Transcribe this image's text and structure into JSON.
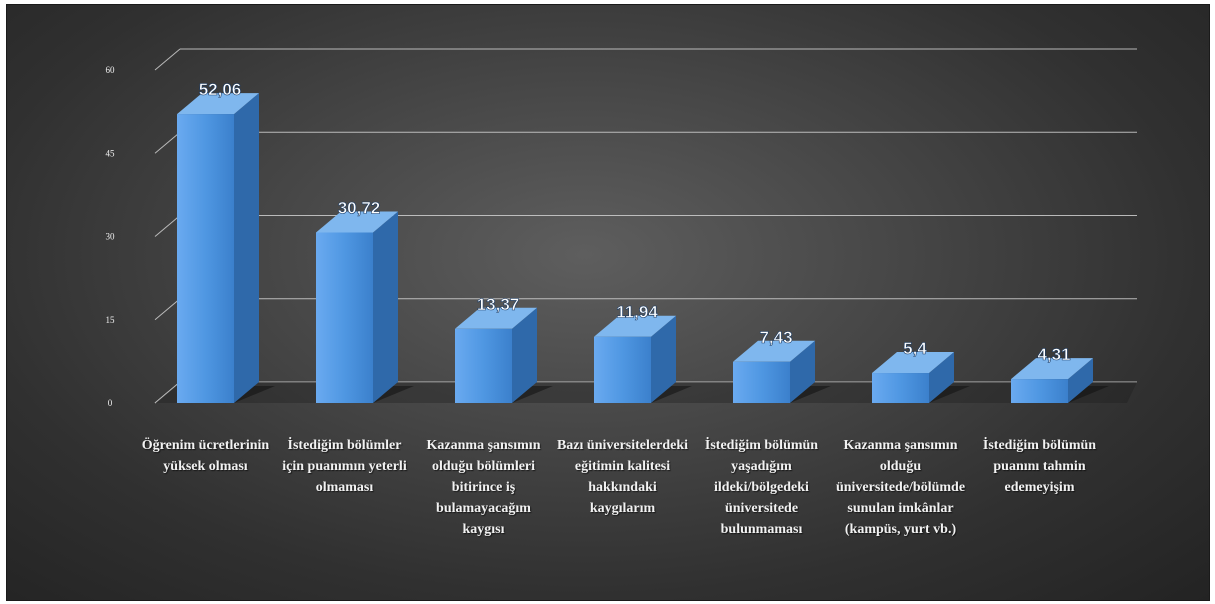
{
  "chart_data": {
    "type": "bar",
    "categories": [
      "Öğrenim ücretlerinin yüksek olması",
      "İstediğim bölümler için puanımın yeterli olmaması",
      "Kazanma şansımın olduğu bölümleri bitirince iş bulamayacağım kaygısı",
      "Bazı üniversitelerdeki eğitimin kalitesi hakkındaki kaygılarım",
      "İstediğim bölümün yaşadığım ildeki/bölgedeki üniversitede bulunmaması",
      "Kazanma şansımın olduğu üniversitede/bölümde sunulan imkânlar (kampüs, yurt vb.)",
      "İstediğim bölümün puanını tahmin edemeyişim"
    ],
    "values": [
      52.06,
      30.72,
      13.37,
      11.94,
      7.43,
      5.4,
      4.31
    ],
    "data_labels": [
      "52,06",
      "30,72",
      "13,37",
      "11,94",
      "7,43",
      "5,4",
      "4,31"
    ],
    "ylim": [
      0,
      60
    ],
    "yticks": [
      0,
      15,
      30,
      45,
      60
    ],
    "ytick_labels": [
      "0",
      "15",
      "30",
      "45",
      "60"
    ],
    "grid": true,
    "legend": "none",
    "colors": {
      "bar_front": "#4f97e2",
      "bar_side": "#2f69aa",
      "bar_top": "#7fb7ee",
      "grid": "#d0d0d0",
      "text": "#f2f2f2"
    }
  }
}
